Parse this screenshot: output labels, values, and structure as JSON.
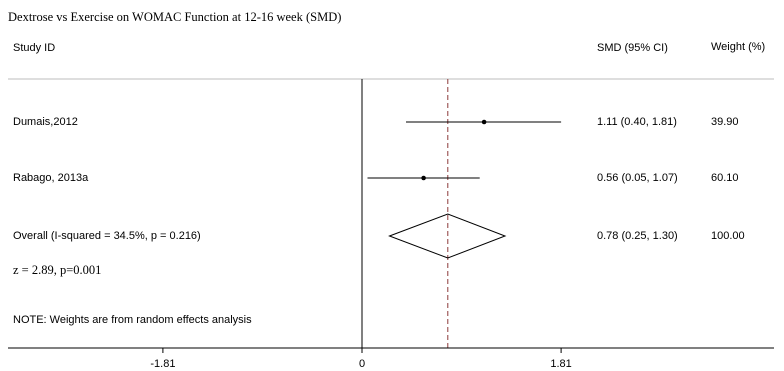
{
  "chart_data": {
    "type": "forest",
    "title": "Dextrose vs Exercise on WOMAC Function at 12-16 week (SMD)",
    "columns": {
      "study": "Study  ID",
      "effect": "SMD (95% CI)",
      "weight": "Weight  (%)"
    },
    "studies": [
      {
        "name": "Dumais,2012",
        "smd": 1.11,
        "lo": 0.4,
        "hi": 1.81,
        "ci_text": "1.11 (0.40, 1.81)",
        "weight": "39.90"
      },
      {
        "name": "Rabago, 2013a",
        "smd": 0.56,
        "lo": 0.05,
        "hi": 1.07,
        "ci_text": "0.56 (0.05, 1.07)",
        "weight": "60.10"
      }
    ],
    "overall": {
      "label": "Overall  (I-squared = 34.5%, p = 0.216)",
      "smd": 0.78,
      "lo": 0.25,
      "hi": 1.3,
      "ci_text": "0.78 (0.25, 1.30)",
      "weight": "100.00"
    },
    "z_text": "z = 2.89, p=0.001",
    "note": "NOTE: Weights are from random effects analysis",
    "x_ticks": [
      {
        "value": -1.81,
        "label": "-1.81"
      },
      {
        "value": 0,
        "label": "0"
      },
      {
        "value": 1.81,
        "label": "1.81"
      }
    ],
    "xlim": [
      -3.62,
      3.62
    ],
    "colors": {
      "line": "#000000",
      "dashed_line": "#8b3a3a",
      "divider": "#bdbdbd"
    }
  }
}
